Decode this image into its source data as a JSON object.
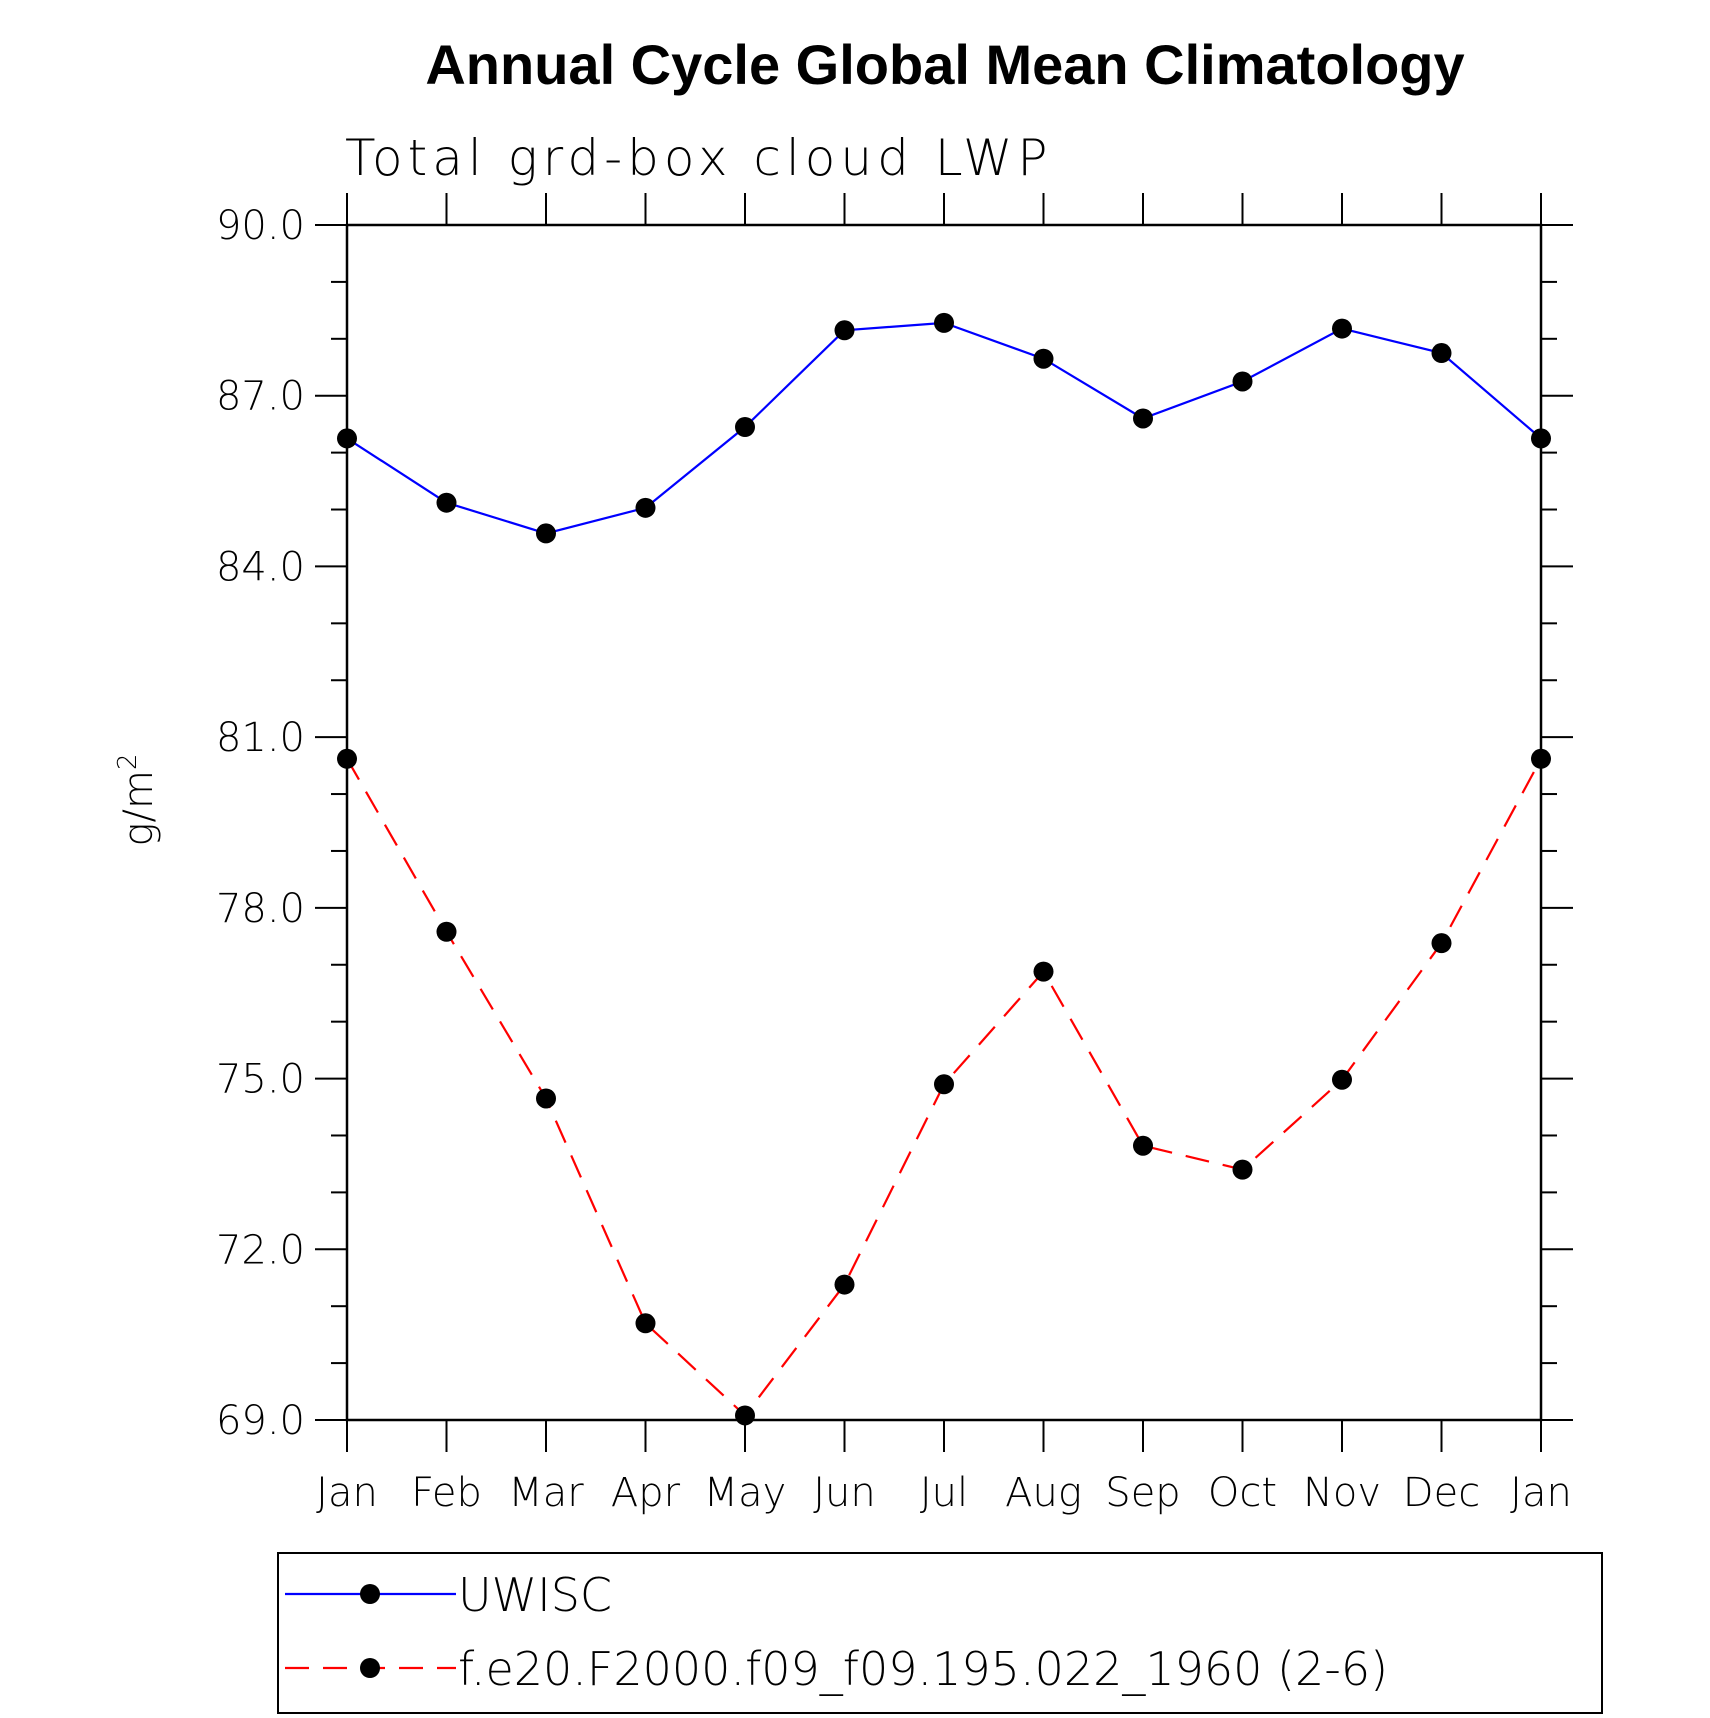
{
  "chart_data": {
    "type": "line",
    "title": "Annual Cycle Global Mean Climatology",
    "subtitle": "Total grd-box cloud LWP",
    "ylabel_base": "g/m",
    "ylabel_sup": "2",
    "xlabel": "",
    "categories": [
      "Jan",
      "Feb",
      "Mar",
      "Apr",
      "May",
      "Jun",
      "Jul",
      "Aug",
      "Sep",
      "Oct",
      "Nov",
      "Dec",
      "Jan"
    ],
    "ylim": [
      69.0,
      90.0
    ],
    "yticks": [
      "69.0",
      "72.0",
      "75.0",
      "78.0",
      "81.0",
      "84.0",
      "87.0",
      "90.0"
    ],
    "ytick_values": [
      69,
      72,
      75,
      78,
      81,
      84,
      87,
      90
    ],
    "series": [
      {
        "name": "UWISC",
        "color": "#0000ff",
        "dash": "solid",
        "marker": "filled-circle",
        "values": [
          86.25,
          85.12,
          84.58,
          85.03,
          86.45,
          88.15,
          88.28,
          87.65,
          86.6,
          87.25,
          88.18,
          87.75,
          86.25
        ]
      },
      {
        "name": "f.e20.F2000.f09_f09.195.022_1960 (2-6)",
        "color": "#ff0000",
        "dash": "dashed",
        "marker": "filled-circle",
        "values": [
          80.62,
          77.58,
          74.65,
          70.7,
          69.08,
          71.38,
          74.9,
          76.88,
          73.82,
          73.4,
          74.98,
          77.38,
          80.62
        ]
      }
    ],
    "legend_position": "bottom"
  }
}
